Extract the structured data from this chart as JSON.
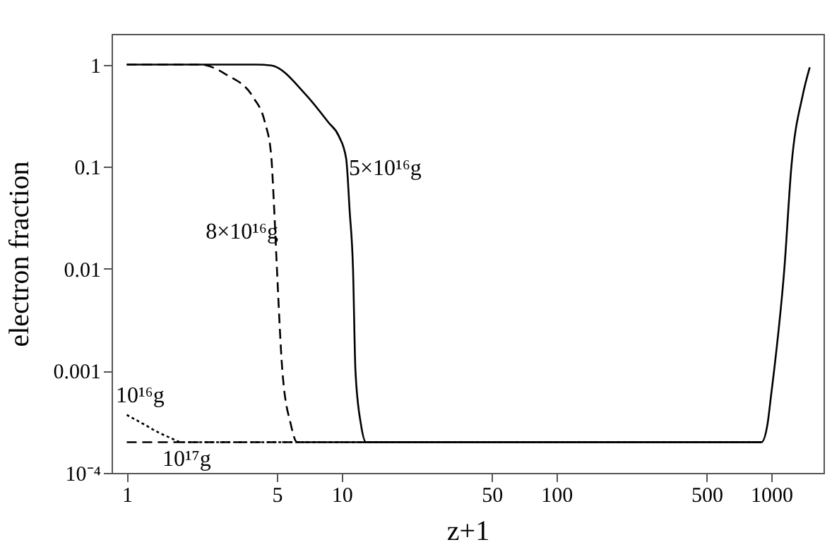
{
  "chart_data": {
    "type": "line",
    "xlabel": "z+1",
    "ylabel": "electron fraction",
    "log": "xy",
    "grid": false,
    "marker": "none",
    "xlim": [
      0.85,
      1750
    ],
    "xticks": [
      1,
      5,
      10,
      50,
      100,
      500,
      1000
    ],
    "ylim": [
      0.0001,
      2
    ],
    "yticks": [
      {
        "value": 0.0001,
        "label": "10⁻⁴"
      },
      0.001,
      0.01,
      0.1,
      1
    ],
    "series": [
      {
        "name": "5×10¹⁶g",
        "color": "#000000",
        "line_style": "solid",
        "x": [
          1,
          4,
          4.7,
          6.8,
          8.7,
          9.7,
          10.5,
          10.9,
          11.3,
          11.6,
          12.3,
          13,
          900,
          960,
          1000,
          1030,
          1150,
          1240,
          1400,
          1510
        ],
        "values": [
          1,
          1,
          0.98,
          0.51,
          0.27,
          0.2,
          0.12,
          0.037,
          0.01,
          0.001,
          0.0003,
          0.0002,
          0.0002,
          0.0003,
          0.0006,
          0.001,
          0.01,
          0.1,
          0.5,
          0.94
        ]
      },
      {
        "name": "8×10¹⁶g",
        "color": "#000000",
        "line_style": "dashed",
        "x": [
          1,
          2.2,
          2.9,
          3.9,
          4.4,
          4.7,
          4.85,
          5,
          5.3,
          5.8,
          6.2,
          900
        ],
        "values": [
          1,
          1,
          0.8,
          0.47,
          0.27,
          0.13,
          0.04,
          0.01,
          0.001,
          0.0003,
          0.0002,
          0.0002
        ]
      },
      {
        "name": "10¹⁶g",
        "color": "#000000",
        "line_style": "dotted",
        "x": [
          1,
          1.2,
          1.4,
          1.6,
          1.8,
          900
        ],
        "values": [
          0.00037,
          0.0003,
          0.00025,
          0.00022,
          0.0002,
          0.0002
        ]
      },
      {
        "name": "10¹⁷g",
        "color": "#000000",
        "line_style": "dashed",
        "x": [
          1,
          900
        ],
        "values": [
          0.0002,
          0.0002
        ]
      }
    ]
  }
}
